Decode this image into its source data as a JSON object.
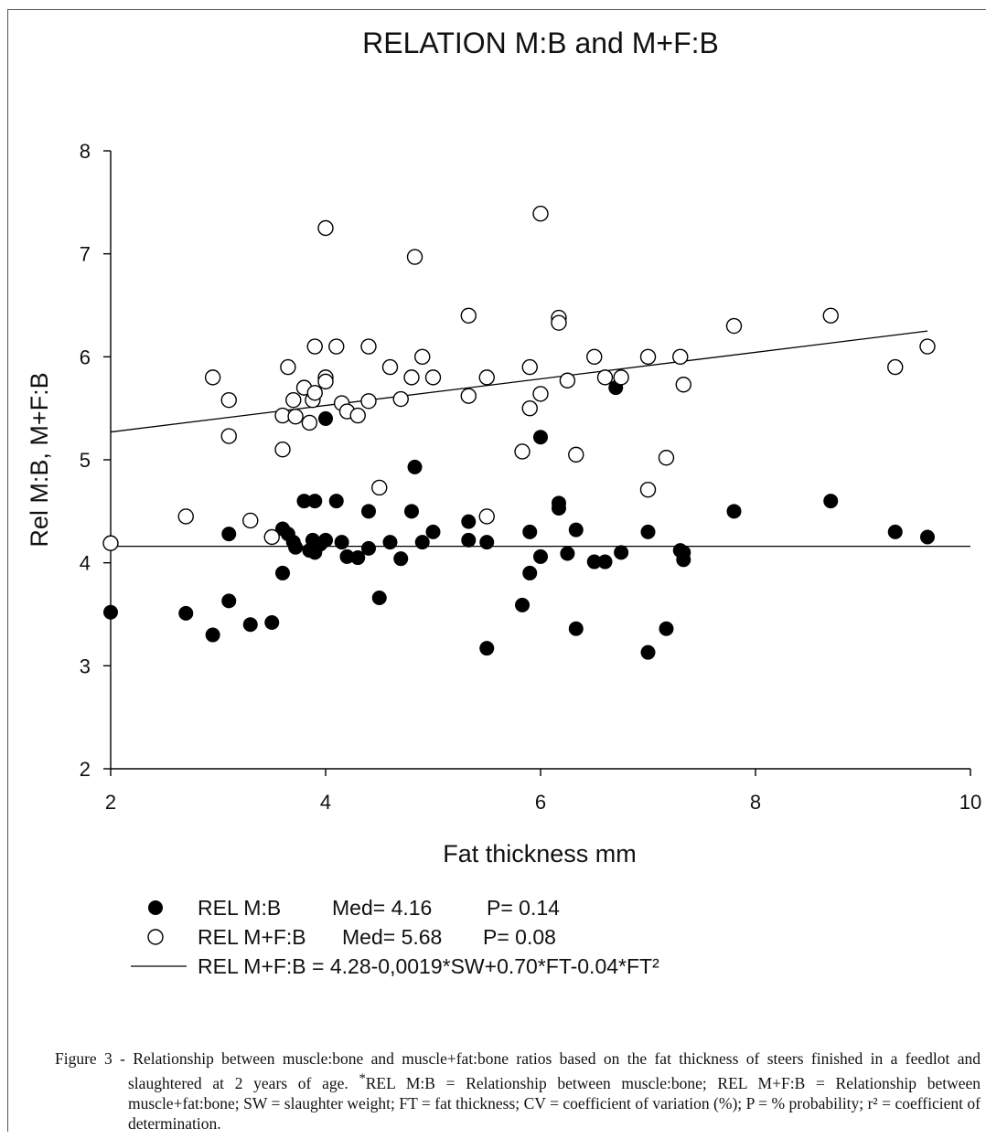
{
  "chart_data": {
    "type": "scatter",
    "title": "RELATION M:B and M+F:B",
    "xlabel": "Fat thickness mm",
    "ylabel": "Rel M:B, M+F:B",
    "xlim": [
      2,
      10
    ],
    "ylim": [
      2,
      8
    ],
    "xticks": [
      "2",
      "4",
      "6",
      "8",
      "10"
    ],
    "yticks": [
      "2",
      "3",
      "4",
      "5",
      "6",
      "7",
      "8"
    ],
    "grid": false,
    "legend_position": "bottom-left",
    "series": [
      {
        "name": "REL M:B",
        "marker": "filled-circle",
        "legend_med": "Med= 4.16",
        "legend_p": "P= 0.14",
        "points": [
          [
            2.0,
            3.52
          ],
          [
            2.7,
            3.51
          ],
          [
            2.95,
            3.3
          ],
          [
            3.1,
            3.63
          ],
          [
            3.1,
            4.28
          ],
          [
            3.3,
            3.4
          ],
          [
            3.5,
            3.42
          ],
          [
            3.6,
            4.33
          ],
          [
            3.6,
            3.9
          ],
          [
            3.65,
            4.28
          ],
          [
            3.7,
            4.2
          ],
          [
            3.72,
            4.15
          ],
          [
            3.8,
            4.6
          ],
          [
            3.85,
            4.12
          ],
          [
            3.88,
            4.22
          ],
          [
            3.9,
            4.6
          ],
          [
            3.9,
            4.1
          ],
          [
            3.95,
            4.18
          ],
          [
            4.0,
            4.22
          ],
          [
            4.0,
            5.4
          ],
          [
            4.1,
            4.6
          ],
          [
            4.15,
            4.2
          ],
          [
            4.2,
            4.06
          ],
          [
            4.3,
            4.05
          ],
          [
            4.4,
            4.5
          ],
          [
            4.4,
            4.14
          ],
          [
            4.5,
            3.66
          ],
          [
            4.6,
            4.2
          ],
          [
            4.7,
            4.04
          ],
          [
            4.8,
            4.5
          ],
          [
            4.83,
            4.93
          ],
          [
            4.9,
            4.2
          ],
          [
            5.0,
            4.3
          ],
          [
            5.33,
            4.4
          ],
          [
            5.33,
            4.22
          ],
          [
            5.5,
            3.17
          ],
          [
            5.5,
            4.2
          ],
          [
            5.83,
            3.59
          ],
          [
            5.9,
            4.3
          ],
          [
            5.9,
            3.9
          ],
          [
            6.0,
            5.22
          ],
          [
            6.0,
            4.06
          ],
          [
            6.17,
            4.58
          ],
          [
            6.17,
            4.53
          ],
          [
            6.25,
            4.09
          ],
          [
            6.33,
            3.36
          ],
          [
            6.33,
            4.32
          ],
          [
            6.5,
            4.01
          ],
          [
            6.6,
            4.01
          ],
          [
            6.7,
            5.7
          ],
          [
            6.75,
            4.1
          ],
          [
            7.0,
            4.3
          ],
          [
            7.0,
            3.13
          ],
          [
            7.17,
            3.36
          ],
          [
            7.3,
            4.12
          ],
          [
            7.33,
            4.03
          ],
          [
            7.33,
            4.1
          ],
          [
            7.8,
            4.5
          ],
          [
            8.7,
            4.6
          ],
          [
            9.3,
            4.3
          ],
          [
            9.6,
            4.25
          ]
        ]
      },
      {
        "name": "REL M+F:B",
        "marker": "open-circle",
        "legend_med": "Med= 5.68",
        "legend_p": "P= 0.08",
        "points": [
          [
            2.0,
            4.19
          ],
          [
            2.7,
            4.45
          ],
          [
            2.95,
            5.8
          ],
          [
            3.1,
            5.58
          ],
          [
            3.1,
            5.23
          ],
          [
            3.3,
            4.41
          ],
          [
            3.5,
            4.25
          ],
          [
            3.6,
            5.1
          ],
          [
            3.6,
            5.43
          ],
          [
            3.65,
            5.9
          ],
          [
            3.7,
            5.58
          ],
          [
            3.72,
            5.42
          ],
          [
            3.8,
            5.7
          ],
          [
            3.85,
            5.36
          ],
          [
            3.88,
            5.58
          ],
          [
            3.9,
            6.1
          ],
          [
            3.9,
            5.65
          ],
          [
            4.0,
            5.8
          ],
          [
            4.0,
            5.76
          ],
          [
            4.0,
            7.25
          ],
          [
            4.1,
            6.1
          ],
          [
            4.15,
            5.55
          ],
          [
            4.2,
            5.47
          ],
          [
            4.3,
            5.43
          ],
          [
            4.4,
            6.1
          ],
          [
            4.4,
            5.57
          ],
          [
            4.5,
            4.73
          ],
          [
            4.6,
            5.9
          ],
          [
            4.7,
            5.59
          ],
          [
            4.8,
            5.8
          ],
          [
            4.83,
            6.97
          ],
          [
            4.9,
            6.0
          ],
          [
            5.0,
            5.8
          ],
          [
            5.33,
            6.4
          ],
          [
            5.33,
            5.62
          ],
          [
            5.5,
            4.45
          ],
          [
            5.5,
            5.8
          ],
          [
            5.83,
            5.08
          ],
          [
            5.9,
            5.9
          ],
          [
            5.9,
            5.5
          ],
          [
            6.0,
            7.39
          ],
          [
            6.0,
            5.64
          ],
          [
            6.17,
            6.38
          ],
          [
            6.17,
            6.33
          ],
          [
            6.25,
            5.77
          ],
          [
            6.33,
            5.05
          ],
          [
            6.5,
            6.0
          ],
          [
            6.6,
            5.8
          ],
          [
            6.75,
            5.8
          ],
          [
            7.0,
            6.0
          ],
          [
            7.0,
            4.71
          ],
          [
            7.17,
            5.02
          ],
          [
            7.3,
            6.0
          ],
          [
            7.33,
            5.73
          ],
          [
            7.8,
            6.3
          ],
          [
            8.7,
            6.4
          ],
          [
            9.3,
            5.9
          ],
          [
            9.6,
            6.1
          ]
        ]
      }
    ],
    "lines": [
      {
        "name": "REL M+F:B = 4.28-0,0019*SW+0.70*FT-0.04*FT²",
        "x": [
          2.0,
          9.6
        ],
        "y": [
          5.27,
          6.25
        ]
      },
      {
        "name": "REL M:B",
        "x": [
          2.0,
          10.0
        ],
        "y": [
          4.16,
          4.16
        ]
      }
    ],
    "legend": [
      {
        "symbol": "filled-circle",
        "name": "REL M:B",
        "med": "Med= 4.16",
        "p": "P= 0.14"
      },
      {
        "symbol": "open-circle",
        "name": "REL M+F:B",
        "med": "Med= 5.68",
        "p": "P= 0.08"
      },
      {
        "symbol": "line",
        "name": "REL M+F:B = 4.28-0,0019*SW+0.70*FT-0.04*FT²"
      }
    ]
  },
  "caption": {
    "lead": "Figure 3 - ",
    "text": "Relationship between muscle:bone and muscle+fat:bone ratios based on the fat thickness of steers finished in a feedlot and slaughtered at 2 years of age.",
    "superscript": "*",
    "notes": "REL M:B = Relationship between muscle:bone; REL M+F:B = Relationship between muscle+fat:bone; SW = slaughter weight; FT = fat thickness; CV = coefficient of variation (%); P = % probability; r² = coefficient of determination."
  }
}
